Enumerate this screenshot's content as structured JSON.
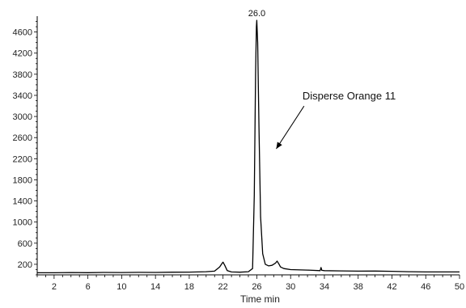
{
  "chart_data": {
    "type": "line",
    "title": "",
    "xlabel": "Time  min",
    "ylabel": "",
    "xlim": [
      0,
      50
    ],
    "ylim": [
      0,
      4900
    ],
    "x_ticks": [
      2,
      6,
      10,
      14,
      18,
      22,
      26,
      30,
      34,
      38,
      42,
      46,
      50
    ],
    "y_ticks": [
      200,
      600,
      1000,
      1400,
      1800,
      2200,
      2600,
      3000,
      3400,
      3800,
      4200,
      4600
    ],
    "grid": false,
    "series": [
      {
        "x": [
          0.0,
          2.0,
          4.0,
          6.0,
          8.0,
          10.0,
          12.0,
          14.0,
          16.0,
          18.0,
          20.0,
          21.0,
          21.6,
          21.9,
          22.0,
          22.2,
          22.5,
          23.0,
          24.0,
          25.0,
          25.5,
          25.7,
          25.85,
          25.95,
          26.0,
          26.1,
          26.25,
          26.45,
          26.7,
          27.0,
          27.4,
          27.8,
          28.2,
          28.4,
          28.6,
          28.8,
          29.2,
          30.0,
          32.0,
          33.5,
          33.6,
          33.7,
          34.0,
          36.0,
          38.0,
          40.0,
          42.0,
          44.0,
          46.0,
          48.0,
          50.0
        ],
        "y": [
          40,
          40,
          45,
          42,
          46,
          44,
          48,
          46,
          50,
          52,
          60,
          70,
          150,
          220,
          240,
          180,
          80,
          55,
          50,
          60,
          120,
          1500,
          3800,
          4700,
          4820,
          4400,
          2800,
          1100,
          400,
          200,
          170,
          180,
          220,
          260,
          210,
          150,
          120,
          100,
          90,
          80,
          140,
          85,
          80,
          75,
          70,
          72,
          68,
          60,
          55,
          55,
          55
        ]
      }
    ],
    "annotations": [
      {
        "text": "26.0",
        "x": 26.0,
        "y": 4820
      },
      {
        "text": "Disperse Orange 11",
        "x": 31.4,
        "y": 3320
      }
    ]
  },
  "colors": {
    "line": "#000000",
    "axis": "#000000",
    "background": "#ffffff"
  }
}
